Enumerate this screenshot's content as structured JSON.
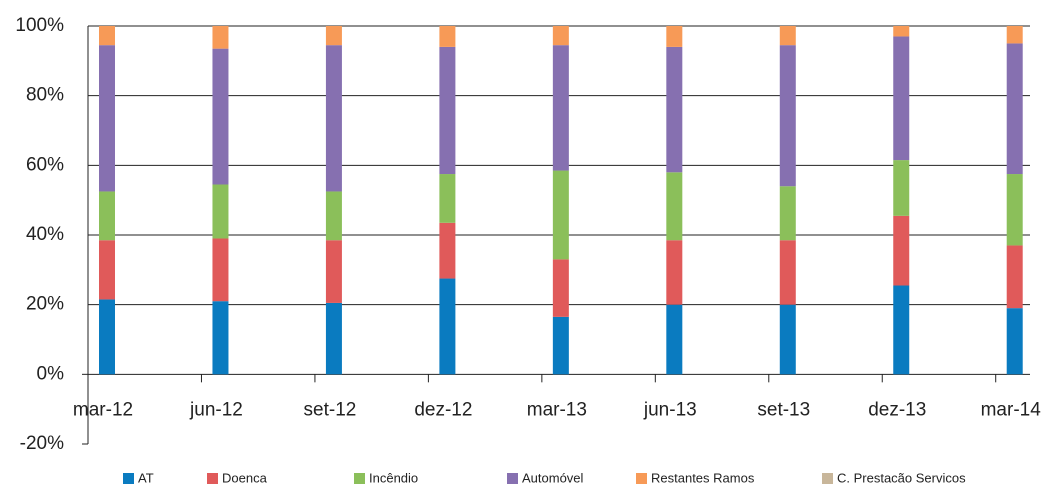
{
  "chart_data": {
    "type": "bar",
    "stacked": true,
    "categories": [
      "mar-12",
      "jun-12",
      "set-12",
      "dez-12",
      "mar-13",
      "jun-13",
      "set-13",
      "dez-13",
      "mar-14"
    ],
    "series": [
      {
        "name": "AT",
        "color": "#0a7bc0",
        "values": [
          21.5,
          21,
          20.5,
          27.5,
          16.5,
          20,
          20,
          25.5,
          19
        ]
      },
      {
        "name": "Doenca",
        "color": "#e05a5a",
        "values": [
          17,
          18,
          18,
          16,
          16.5,
          18.5,
          18.5,
          20,
          18
        ]
      },
      {
        "name": "Incêndio",
        "color": "#8bbf5a",
        "values": [
          14,
          15.5,
          14,
          14,
          25.5,
          19.5,
          15.5,
          16,
          20.5
        ]
      },
      {
        "name": "Automóvel",
        "color": "#8670b0",
        "values": [
          42,
          39,
          42,
          36.5,
          36,
          36,
          40.5,
          35.5,
          37.5
        ]
      },
      {
        "name": "Restantes Ramos",
        "color": "#f79a57",
        "values": [
          5.5,
          6.5,
          5.5,
          6,
          5.5,
          6,
          5.5,
          3,
          5
        ]
      },
      {
        "name": "C. Prestacão Servicos",
        "color": "#c8b69a",
        "values": [
          0,
          0,
          0,
          0,
          0,
          0,
          0,
          0,
          0
        ]
      }
    ],
    "ylim": [
      -20,
      100
    ],
    "yticks": [
      {
        "value": -20,
        "label": "-20%"
      },
      {
        "value": 0,
        "label": "0%"
      },
      {
        "value": 20,
        "label": "20%"
      },
      {
        "value": 40,
        "label": "40%"
      },
      {
        "value": 60,
        "label": "60%"
      },
      {
        "value": 80,
        "label": "80%"
      },
      {
        "value": 100,
        "label": "100%"
      }
    ],
    "grid": true,
    "legend": "bottom"
  }
}
